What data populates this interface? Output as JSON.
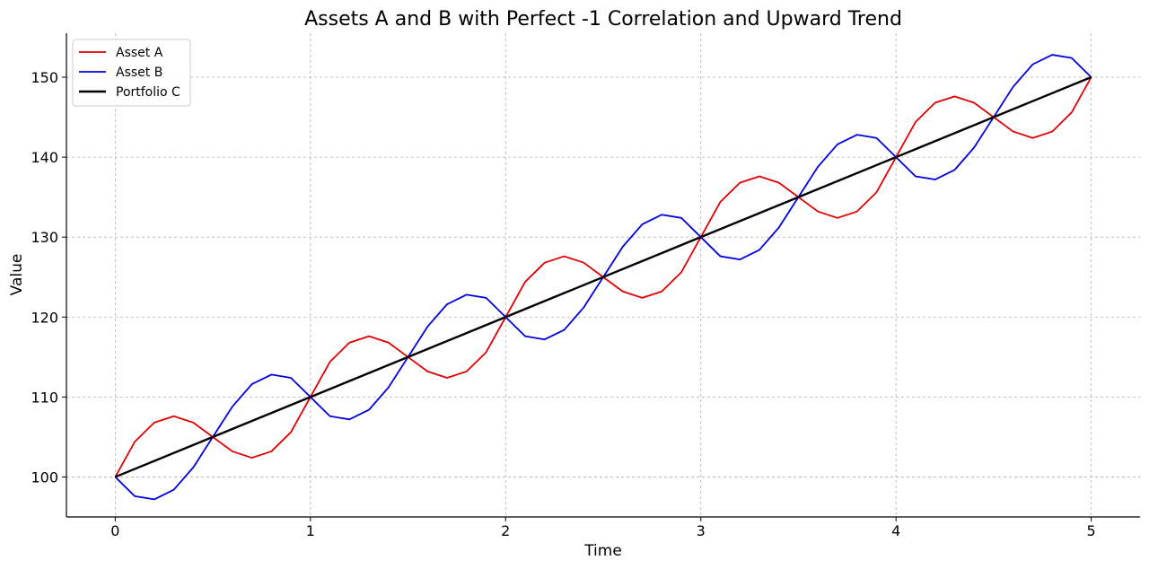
{
  "chart_data": {
    "type": "line",
    "title": "Assets A and B with Perfect -1 Correlation and Upward Trend",
    "xlabel": "Time",
    "ylabel": "Value",
    "xlim": [
      -0.25,
      5.25
    ],
    "ylim": [
      95,
      155.5
    ],
    "xticks": [
      0,
      1,
      2,
      3,
      4,
      5
    ],
    "yticks": [
      100,
      110,
      120,
      130,
      140,
      150
    ],
    "grid": true,
    "legend_position": "top-left",
    "series": [
      {
        "name": "Asset A",
        "color": "#e00000",
        "x": [
          0,
          0.1,
          0.2,
          0.3,
          0.4,
          0.5,
          0.6,
          0.7,
          0.8,
          0.9,
          1.0,
          1.1,
          1.2,
          1.3,
          1.4,
          1.5,
          1.6,
          1.7,
          1.8,
          1.9,
          2.0,
          2.1,
          2.2,
          2.3,
          2.4,
          2.5,
          2.6,
          2.7,
          2.8,
          2.9,
          3.0,
          3.1,
          3.2,
          3.3,
          3.4,
          3.5,
          3.6,
          3.7,
          3.8,
          3.9,
          4.0,
          4.1,
          4.2,
          4.3,
          4.4,
          4.5,
          4.6,
          4.7,
          4.8,
          4.9,
          5.0
        ],
        "y": [
          100.0,
          104.4,
          106.8,
          107.6,
          106.8,
          105.0,
          103.2,
          102.4,
          103.2,
          105.6,
          110.0,
          114.4,
          116.8,
          117.6,
          116.8,
          115.0,
          113.2,
          112.4,
          113.2,
          115.6,
          120.0,
          124.4,
          126.8,
          127.6,
          126.8,
          125.0,
          123.2,
          122.4,
          123.2,
          125.6,
          130.0,
          134.4,
          136.8,
          137.6,
          136.8,
          135.0,
          133.2,
          132.4,
          133.2,
          135.6,
          140.0,
          144.4,
          146.8,
          147.6,
          146.8,
          145.0,
          143.2,
          142.4,
          143.2,
          145.6,
          150.0
        ]
      },
      {
        "name": "Asset B",
        "color": "#0000e0",
        "x": [
          0,
          0.1,
          0.2,
          0.3,
          0.4,
          0.5,
          0.6,
          0.7,
          0.8,
          0.9,
          1.0,
          1.1,
          1.2,
          1.3,
          1.4,
          1.5,
          1.6,
          1.7,
          1.8,
          1.9,
          2.0,
          2.1,
          2.2,
          2.3,
          2.4,
          2.5,
          2.6,
          2.7,
          2.8,
          2.9,
          3.0,
          3.1,
          3.2,
          3.3,
          3.4,
          3.5,
          3.6,
          3.7,
          3.8,
          3.9,
          4.0,
          4.1,
          4.2,
          4.3,
          4.4,
          4.5,
          4.6,
          4.7,
          4.8,
          4.9,
          5.0
        ],
        "y": [
          100.0,
          97.6,
          97.2,
          98.4,
          101.2,
          105.0,
          108.8,
          111.6,
          112.8,
          112.4,
          110.0,
          107.6,
          107.2,
          108.4,
          111.2,
          115.0,
          118.8,
          121.6,
          122.8,
          122.4,
          120.0,
          117.6,
          117.2,
          118.4,
          121.2,
          125.0,
          128.8,
          131.6,
          132.8,
          132.4,
          130.0,
          127.6,
          127.2,
          128.4,
          131.2,
          135.0,
          138.8,
          141.6,
          142.8,
          142.4,
          140.0,
          137.6,
          137.2,
          138.4,
          141.2,
          145.0,
          148.8,
          151.6,
          152.8,
          152.4,
          150.0
        ]
      },
      {
        "name": "Portfolio C",
        "color": "#000000",
        "x": [
          0,
          5
        ],
        "y": [
          100,
          150
        ]
      }
    ]
  }
}
